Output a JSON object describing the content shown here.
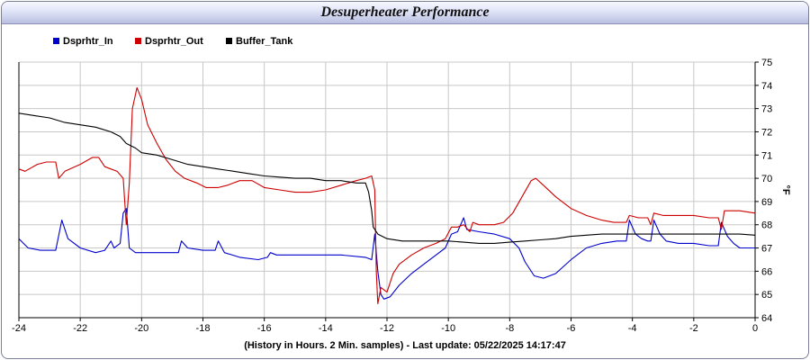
{
  "window": {
    "title": "Desuperheater Performance",
    "footer": "(History in Hours. 2 Min. samples) - Last update: 05/22/2025 14:17:47"
  },
  "chart_data": {
    "type": "line",
    "title": "Desuperheater Performance",
    "xlabel": "(History in Hours. 2 Min. samples) - Last update: 05/22/2025 14:17:47",
    "ylabel": "°F",
    "xlim": [
      -24,
      0
    ],
    "ylim": [
      64,
      75
    ],
    "x_ticks": [
      -24,
      -22,
      -20,
      -18,
      -16,
      -14,
      -12,
      -10,
      -8,
      -6,
      -4,
      -2,
      0
    ],
    "x_tick_labels": [
      "-24",
      "-22",
      "-20",
      "-18",
      "-16",
      "-14",
      "-12",
      "-10",
      "-8",
      "-6",
      "-4",
      "-2",
      "0"
    ],
    "y_ticks": [
      64,
      65,
      66,
      67,
      68,
      69,
      70,
      71,
      72,
      73,
      74,
      75
    ],
    "y_tick_labels": [
      "64",
      "65",
      "66",
      "67",
      "68",
      "69",
      "70",
      "71",
      "72",
      "73",
      "74",
      "75"
    ],
    "y_axis_side": "right",
    "grid": true,
    "legend_position": "top-left",
    "series": [
      {
        "name": "Dsprhtr_In",
        "color": "#0000cc",
        "points": [
          [
            -24,
            67.4
          ],
          [
            -23.7,
            67.0
          ],
          [
            -23.3,
            66.9
          ],
          [
            -22.8,
            66.9
          ],
          [
            -22.6,
            68.2
          ],
          [
            -22.4,
            67.4
          ],
          [
            -22.0,
            67.0
          ],
          [
            -21.5,
            66.8
          ],
          [
            -21.2,
            66.9
          ],
          [
            -21.0,
            67.3
          ],
          [
            -20.9,
            67.0
          ],
          [
            -20.7,
            67.2
          ],
          [
            -20.6,
            68.5
          ],
          [
            -20.5,
            68.7
          ],
          [
            -20.4,
            67.0
          ],
          [
            -20.2,
            66.8
          ],
          [
            -19.8,
            66.8
          ],
          [
            -19.0,
            66.8
          ],
          [
            -18.8,
            66.8
          ],
          [
            -18.7,
            67.3
          ],
          [
            -18.5,
            67.0
          ],
          [
            -18.0,
            66.9
          ],
          [
            -17.6,
            66.9
          ],
          [
            -17.5,
            67.3
          ],
          [
            -17.3,
            66.8
          ],
          [
            -16.8,
            66.6
          ],
          [
            -16.2,
            66.5
          ],
          [
            -15.9,
            66.6
          ],
          [
            -15.8,
            66.8
          ],
          [
            -15.6,
            66.7
          ],
          [
            -14.5,
            66.7
          ],
          [
            -13.5,
            66.7
          ],
          [
            -12.7,
            66.6
          ],
          [
            -12.5,
            66.5
          ],
          [
            -12.4,
            67.6
          ],
          [
            -12.3,
            66.0
          ],
          [
            -12.2,
            65.0
          ],
          [
            -12.1,
            64.8
          ],
          [
            -11.9,
            64.9
          ],
          [
            -11.6,
            65.4
          ],
          [
            -11.2,
            65.9
          ],
          [
            -10.8,
            66.3
          ],
          [
            -10.4,
            66.7
          ],
          [
            -10.1,
            67.0
          ],
          [
            -9.9,
            67.6
          ],
          [
            -9.7,
            67.7
          ],
          [
            -9.5,
            68.3
          ],
          [
            -9.4,
            67.8
          ],
          [
            -9.0,
            67.7
          ],
          [
            -8.5,
            67.6
          ],
          [
            -8.0,
            67.4
          ],
          [
            -7.7,
            67.0
          ],
          [
            -7.5,
            66.4
          ],
          [
            -7.2,
            65.8
          ],
          [
            -6.9,
            65.7
          ],
          [
            -6.5,
            65.9
          ],
          [
            -6.0,
            66.5
          ],
          [
            -5.5,
            67.0
          ],
          [
            -5.0,
            67.2
          ],
          [
            -4.5,
            67.3
          ],
          [
            -4.2,
            67.3
          ],
          [
            -4.1,
            68.2
          ],
          [
            -3.9,
            67.6
          ],
          [
            -3.7,
            67.4
          ],
          [
            -3.5,
            67.3
          ],
          [
            -3.4,
            67.3
          ],
          [
            -3.3,
            68.2
          ],
          [
            -3.1,
            67.6
          ],
          [
            -2.9,
            67.3
          ],
          [
            -2.5,
            67.2
          ],
          [
            -2.0,
            67.2
          ],
          [
            -1.5,
            67.1
          ],
          [
            -1.2,
            67.1
          ],
          [
            -1.1,
            68.1
          ],
          [
            -0.9,
            67.5
          ],
          [
            -0.7,
            67.2
          ],
          [
            -0.5,
            67.0
          ],
          [
            0,
            67.0
          ]
        ]
      },
      {
        "name": "Dsprhtr_Out",
        "color": "#cc0000",
        "points": [
          [
            -24,
            70.4
          ],
          [
            -23.8,
            70.3
          ],
          [
            -23.4,
            70.6
          ],
          [
            -23.1,
            70.7
          ],
          [
            -22.8,
            70.7
          ],
          [
            -22.7,
            70.0
          ],
          [
            -22.5,
            70.3
          ],
          [
            -22.0,
            70.6
          ],
          [
            -21.6,
            70.9
          ],
          [
            -21.4,
            70.9
          ],
          [
            -21.2,
            70.5
          ],
          [
            -21.0,
            70.4
          ],
          [
            -20.8,
            70.3
          ],
          [
            -20.6,
            70.0
          ],
          [
            -20.5,
            68.0
          ],
          [
            -20.4,
            69.8
          ],
          [
            -20.3,
            73.0
          ],
          [
            -20.15,
            73.9
          ],
          [
            -20.0,
            73.4
          ],
          [
            -19.8,
            72.3
          ],
          [
            -19.5,
            71.5
          ],
          [
            -19.2,
            70.8
          ],
          [
            -18.9,
            70.3
          ],
          [
            -18.6,
            70.0
          ],
          [
            -18.2,
            69.8
          ],
          [
            -17.9,
            69.6
          ],
          [
            -17.5,
            69.6
          ],
          [
            -17.2,
            69.7
          ],
          [
            -16.8,
            69.9
          ],
          [
            -16.4,
            69.9
          ],
          [
            -16.0,
            69.6
          ],
          [
            -15.5,
            69.5
          ],
          [
            -15.0,
            69.4
          ],
          [
            -14.5,
            69.4
          ],
          [
            -14.0,
            69.5
          ],
          [
            -13.5,
            69.7
          ],
          [
            -13.0,
            69.9
          ],
          [
            -12.7,
            70.0
          ],
          [
            -12.5,
            70.1
          ],
          [
            -12.4,
            69.5
          ],
          [
            -12.35,
            66.0
          ],
          [
            -12.3,
            64.6
          ],
          [
            -12.2,
            65.3
          ],
          [
            -12.0,
            65.1
          ],
          [
            -11.8,
            65.9
          ],
          [
            -11.6,
            66.3
          ],
          [
            -11.2,
            66.7
          ],
          [
            -10.8,
            67.0
          ],
          [
            -10.4,
            67.2
          ],
          [
            -10.1,
            67.4
          ],
          [
            -9.9,
            67.9
          ],
          [
            -9.7,
            67.9
          ],
          [
            -9.5,
            68.0
          ],
          [
            -9.3,
            67.7
          ],
          [
            -9.2,
            68.1
          ],
          [
            -9.0,
            68.0
          ],
          [
            -8.5,
            68.0
          ],
          [
            -8.2,
            68.1
          ],
          [
            -7.9,
            68.5
          ],
          [
            -7.6,
            69.2
          ],
          [
            -7.3,
            69.9
          ],
          [
            -7.15,
            70.0
          ],
          [
            -6.9,
            69.7
          ],
          [
            -6.5,
            69.2
          ],
          [
            -6.0,
            68.7
          ],
          [
            -5.5,
            68.4
          ],
          [
            -5.0,
            68.2
          ],
          [
            -4.6,
            68.1
          ],
          [
            -4.2,
            68.1
          ],
          [
            -4.1,
            68.4
          ],
          [
            -3.8,
            68.3
          ],
          [
            -3.5,
            68.3
          ],
          [
            -3.4,
            68.0
          ],
          [
            -3.3,
            68.5
          ],
          [
            -3.0,
            68.4
          ],
          [
            -2.5,
            68.4
          ],
          [
            -2.0,
            68.4
          ],
          [
            -1.5,
            68.3
          ],
          [
            -1.2,
            68.3
          ],
          [
            -1.1,
            67.8
          ],
          [
            -1.0,
            68.6
          ],
          [
            -0.5,
            68.6
          ],
          [
            0,
            68.5
          ]
        ]
      },
      {
        "name": "Buffer_Tank",
        "color": "#000000",
        "points": [
          [
            -24,
            72.8
          ],
          [
            -23.5,
            72.7
          ],
          [
            -23.0,
            72.6
          ],
          [
            -22.5,
            72.4
          ],
          [
            -22.0,
            72.3
          ],
          [
            -21.5,
            72.2
          ],
          [
            -21.0,
            72.0
          ],
          [
            -20.7,
            71.8
          ],
          [
            -20.5,
            71.5
          ],
          [
            -20.2,
            71.3
          ],
          [
            -20.0,
            71.1
          ],
          [
            -19.5,
            71.0
          ],
          [
            -19.0,
            70.8
          ],
          [
            -18.5,
            70.6
          ],
          [
            -18.0,
            70.5
          ],
          [
            -17.5,
            70.4
          ],
          [
            -17.0,
            70.3
          ],
          [
            -16.5,
            70.2
          ],
          [
            -16.0,
            70.1
          ],
          [
            -15.5,
            70.05
          ],
          [
            -15.0,
            70.0
          ],
          [
            -14.5,
            70.0
          ],
          [
            -14.0,
            69.9
          ],
          [
            -13.5,
            69.9
          ],
          [
            -13.0,
            69.8
          ],
          [
            -12.7,
            69.8
          ],
          [
            -12.6,
            69.4
          ],
          [
            -12.5,
            68.6
          ],
          [
            -12.45,
            67.9
          ],
          [
            -12.3,
            67.6
          ],
          [
            -12.0,
            67.4
          ],
          [
            -11.5,
            67.3
          ],
          [
            -11.0,
            67.3
          ],
          [
            -10.5,
            67.3
          ],
          [
            -10.0,
            67.3
          ],
          [
            -9.5,
            67.25
          ],
          [
            -9.0,
            67.2
          ],
          [
            -8.5,
            67.2
          ],
          [
            -8.0,
            67.25
          ],
          [
            -7.5,
            67.3
          ],
          [
            -7.0,
            67.35
          ],
          [
            -6.5,
            67.4
          ],
          [
            -6.0,
            67.5
          ],
          [
            -5.5,
            67.55
          ],
          [
            -5.0,
            67.6
          ],
          [
            -4.5,
            67.6
          ],
          [
            -4.0,
            67.6
          ],
          [
            -3.5,
            67.6
          ],
          [
            -3.0,
            67.6
          ],
          [
            -2.5,
            67.6
          ],
          [
            -2.0,
            67.6
          ],
          [
            -1.5,
            67.6
          ],
          [
            -1.0,
            67.6
          ],
          [
            -0.5,
            67.6
          ],
          [
            0,
            67.55
          ]
        ]
      }
    ]
  }
}
